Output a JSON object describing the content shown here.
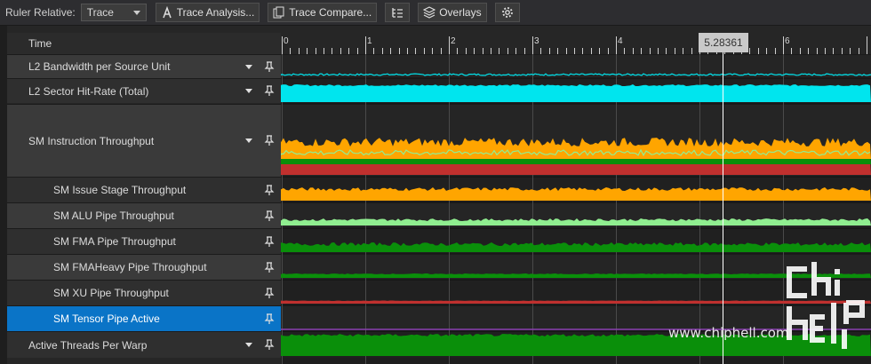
{
  "toolbar": {
    "ruler_label": "Ruler Relative:",
    "ruler_value": "Trace",
    "trace_analysis": "Trace Analysis...",
    "trace_compare": "Trace Compare...",
    "overlays": "Overlays"
  },
  "timeline": {
    "header": "Time",
    "ticks": [
      "0",
      "1",
      "2",
      "3",
      "4",
      "5",
      "6"
    ],
    "cursor_value": "5.28361"
  },
  "rows": [
    {
      "label": "L2 Bandwidth per Source Unit",
      "expandable": true,
      "indent": 0,
      "selected": false
    },
    {
      "label": "L2 Sector Hit-Rate (Total)",
      "expandable": true,
      "indent": 0,
      "selected": false
    },
    {
      "label": "SM Instruction Throughput",
      "expandable": true,
      "indent": 0,
      "selected": false
    },
    {
      "label": "SM Issue Stage Throughput",
      "expandable": false,
      "indent": 1,
      "selected": false
    },
    {
      "label": "SM ALU Pipe Throughput",
      "expandable": false,
      "indent": 1,
      "selected": false
    },
    {
      "label": "SM FMA Pipe Throughput",
      "expandable": false,
      "indent": 1,
      "selected": false
    },
    {
      "label": "SM FMAHeavy Pipe Throughput",
      "expandable": false,
      "indent": 1,
      "selected": false
    },
    {
      "label": "SM XU Pipe Throughput",
      "expandable": false,
      "indent": 1,
      "selected": false
    },
    {
      "label": "SM Tensor Pipe Active",
      "expandable": false,
      "indent": 1,
      "selected": true
    },
    {
      "label": "Active Threads Per Warp",
      "expandable": true,
      "indent": 0,
      "selected": false
    }
  ],
  "colors": {
    "cyan": "#00e5ee",
    "orange": "#ffa500",
    "light_green": "#90ee90",
    "green": "#0a8f0a",
    "red": "#c0302e",
    "purple": "#8a3fb0",
    "selection": "#0a74c7"
  },
  "watermark": "www.chiphell.com"
}
